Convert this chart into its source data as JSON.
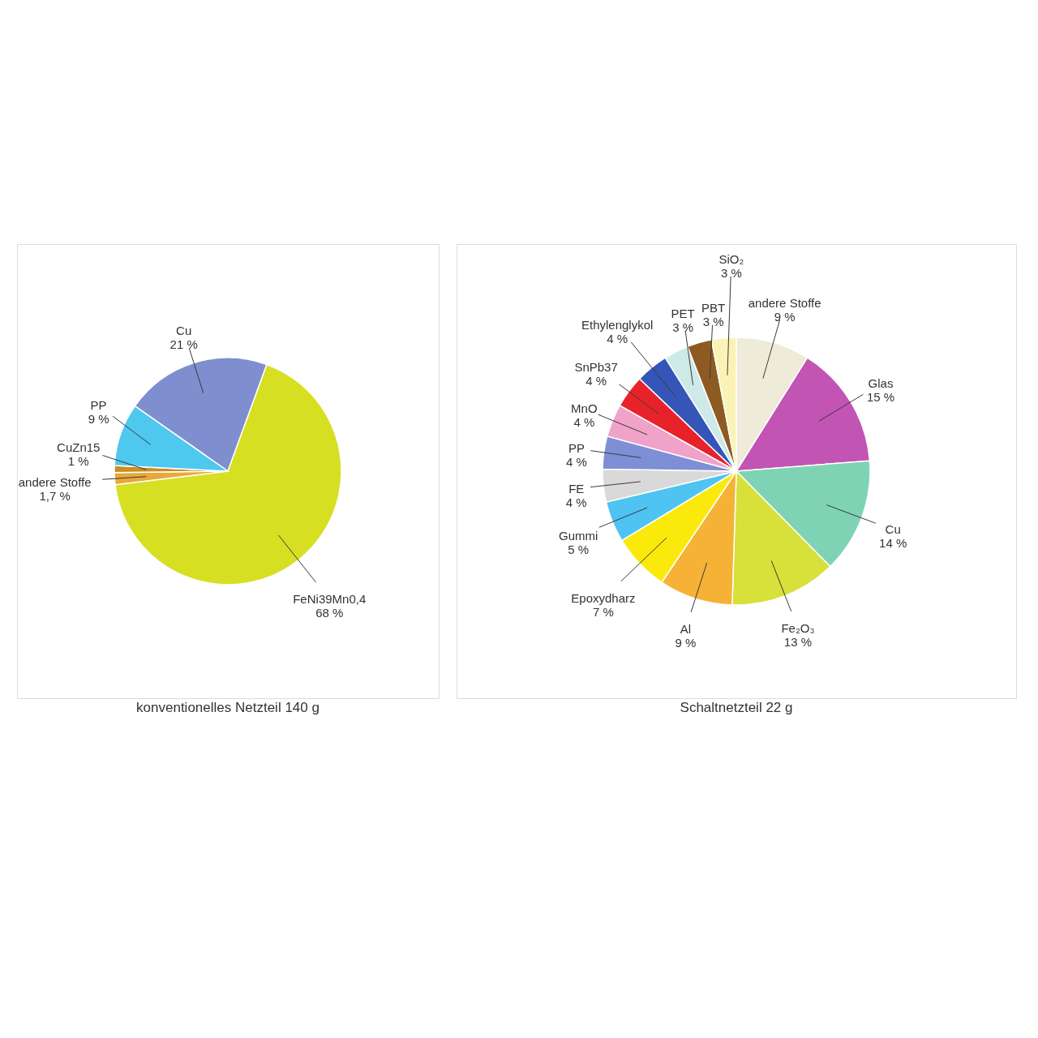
{
  "chart_data": [
    {
      "type": "pie",
      "title": "konventionelles Netzteil 140 g",
      "categories": [
        "Cu",
        "FeNi39Mn0,4",
        "andere Stoffe",
        "CuZn15",
        "PP"
      ],
      "values": [
        21,
        68,
        1.7,
        1,
        9
      ],
      "value_labels": [
        "21 %",
        "68 %",
        "1,7 %",
        "1 %",
        "9 %"
      ],
      "colors": [
        "#7e8ecf",
        "#d6df22",
        "#e8a83a",
        "#c98f22",
        "#4fc8f0"
      ]
    },
    {
      "type": "pie",
      "title": "Schaltnetzteil 22 g",
      "categories": [
        "andere Stoffe",
        "Glas",
        "Cu",
        "Fe₂O₃",
        "Al",
        "Epoxydharz",
        "Gummi",
        "FE",
        "PP",
        "MnO",
        "SnPb37",
        "Ethylenglykol",
        "PET",
        "PBT",
        "SiO₂"
      ],
      "values": [
        9,
        15,
        14,
        13,
        9,
        7,
        5,
        4,
        4,
        4,
        4,
        4,
        3,
        3,
        3
      ],
      "value_labels": [
        "9 %",
        "15 %",
        "14 %",
        "13 %",
        "9 %",
        "7 %",
        "5 %",
        "4 %",
        "4 %",
        "4 %",
        "4 %",
        "4 %",
        "3 %",
        "3 %",
        "3 %"
      ],
      "colors": [
        "#efebd9",
        "#c254b4",
        "#7fd3b5",
        "#d8e03a",
        "#f5b236",
        "#fbe90c",
        "#4fc3f1",
        "#d9d9d9",
        "#7f8fd6",
        "#f0a2c9",
        "#e8222a",
        "#3555b8",
        "#cde9e8",
        "#8d5b22",
        "#faf3b5"
      ]
    }
  ]
}
